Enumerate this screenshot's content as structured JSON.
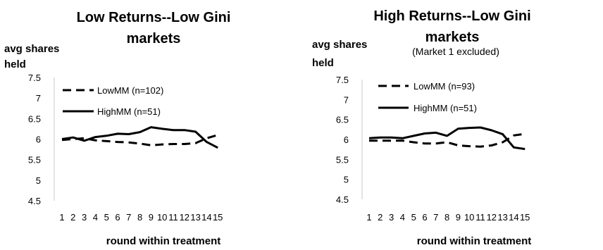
{
  "chart_data": [
    {
      "type": "line",
      "title_lines": [
        "Low Returns--Low Gini",
        "markets"
      ],
      "subtitle": "",
      "ylabel_lines": [
        "avg shares",
        "held"
      ],
      "xlabel": "round within treatment",
      "ylim": [
        4.5,
        7.5
      ],
      "yticks": [
        "4.5",
        "5",
        "5.5",
        "6",
        "6.5",
        "7",
        "7.5"
      ],
      "x": [
        1,
        2,
        3,
        4,
        5,
        6,
        7,
        8,
        9,
        10,
        11,
        12,
        13,
        14,
        15
      ],
      "legend_position": "top-left",
      "grid": false,
      "series": [
        {
          "name": "LowMM (n=102)",
          "style": "dashed",
          "color": "#000000",
          "values": [
            5.98,
            6.0,
            6.02,
            5.97,
            5.95,
            5.93,
            5.92,
            5.89,
            5.85,
            5.87,
            5.88,
            5.88,
            5.9,
            6.02,
            6.1
          ]
        },
        {
          "name": "HighMM (n=51)",
          "style": "solid",
          "color": "#000000",
          "values": [
            6.0,
            6.04,
            5.96,
            6.05,
            6.08,
            6.13,
            6.12,
            6.17,
            6.29,
            6.25,
            6.22,
            6.22,
            6.18,
            5.93,
            5.79
          ]
        }
      ]
    },
    {
      "type": "line",
      "title_lines": [
        "High Returns--Low Gini",
        "markets"
      ],
      "subtitle": "(Market 1 excluded)",
      "ylabel_lines": [
        "avg shares",
        "held"
      ],
      "xlabel": "round within treatment",
      "ylim": [
        4.5,
        7.5
      ],
      "yticks": [
        "4.5",
        "5",
        "5.5",
        "6",
        "6.5",
        "7",
        "7.5"
      ],
      "x": [
        1,
        2,
        3,
        4,
        5,
        6,
        7,
        8,
        9,
        10,
        11,
        12,
        13,
        14,
        15
      ],
      "legend_position": "top-left",
      "grid": false,
      "series": [
        {
          "name": "LowMM (n=93)",
          "style": "dashed",
          "color": "#000000",
          "values": [
            5.97,
            5.97,
            5.97,
            5.97,
            5.93,
            5.9,
            5.9,
            5.93,
            5.85,
            5.83,
            5.82,
            5.85,
            5.93,
            6.1,
            6.14
          ]
        },
        {
          "name": "HighMM (n=51)",
          "style": "solid",
          "color": "#000000",
          "values": [
            6.03,
            6.05,
            6.05,
            6.03,
            6.09,
            6.15,
            6.17,
            6.09,
            6.27,
            6.29,
            6.3,
            6.23,
            6.13,
            5.8,
            5.76
          ]
        }
      ]
    }
  ]
}
